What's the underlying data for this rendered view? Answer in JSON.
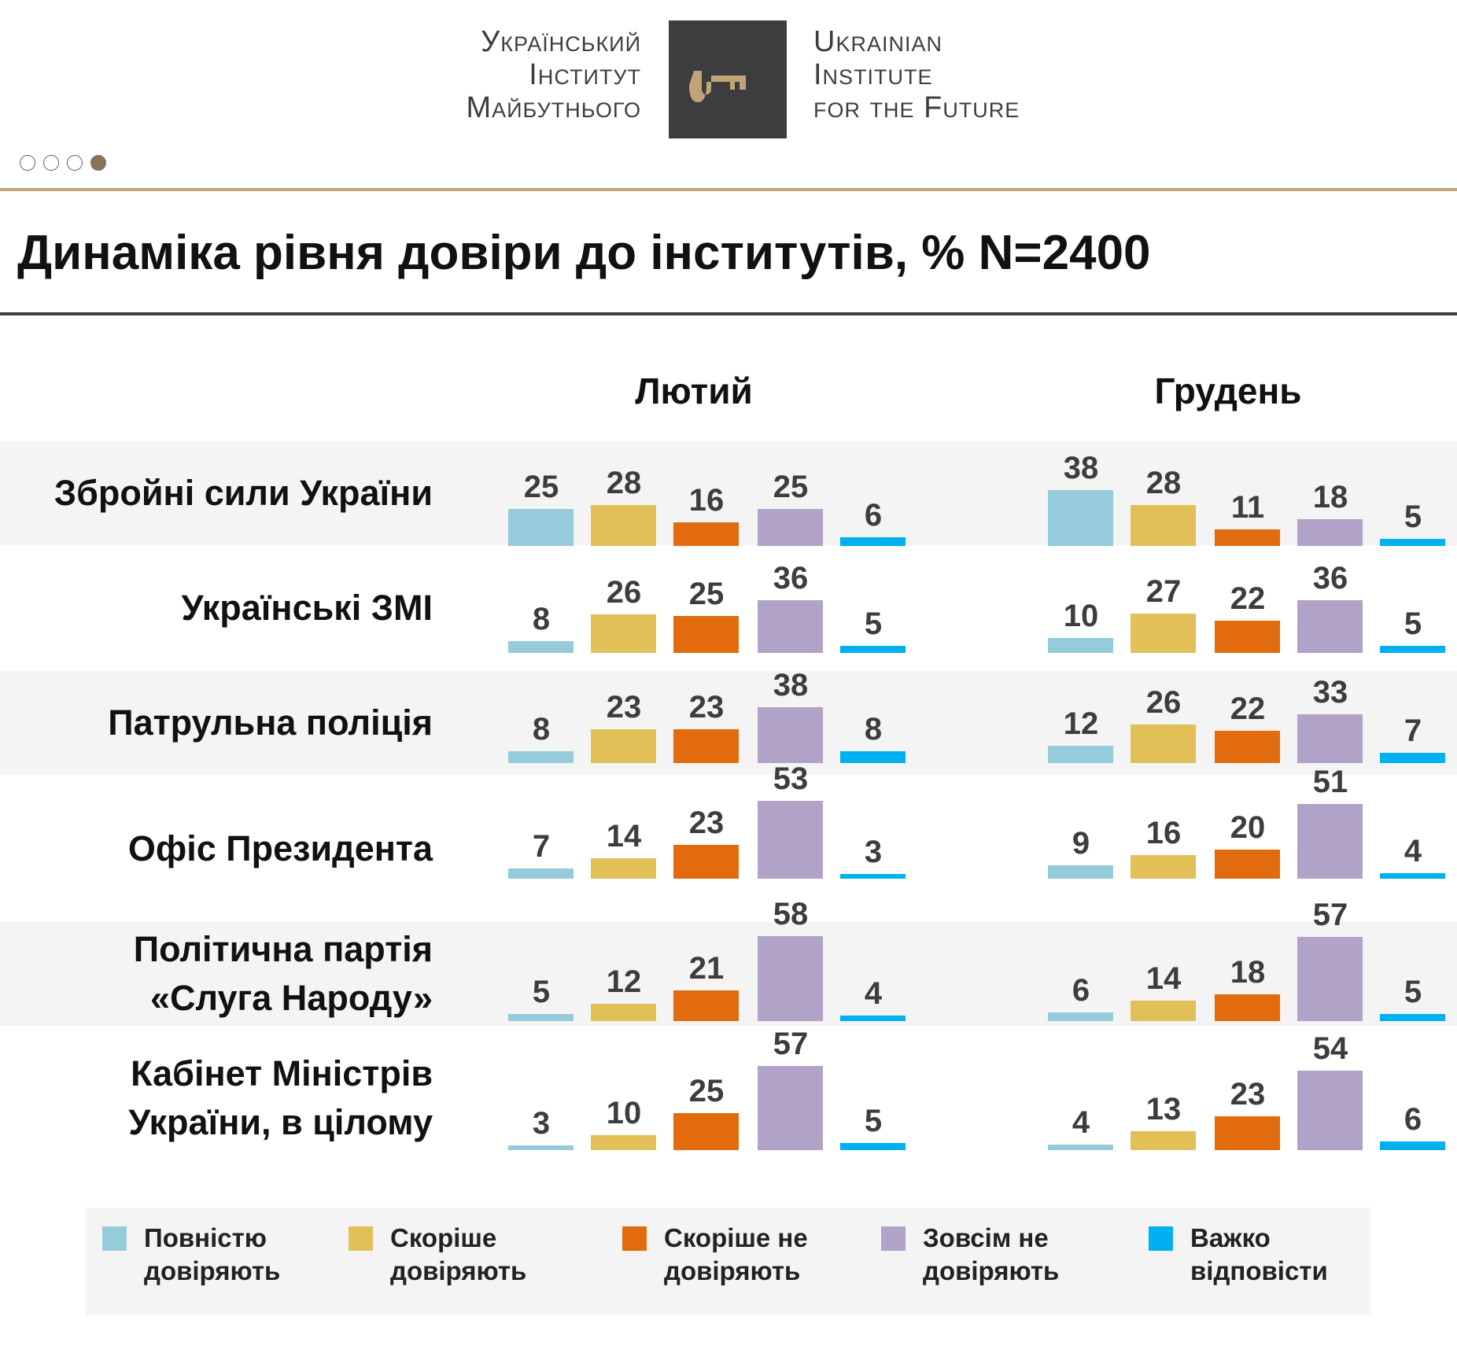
{
  "header": {
    "logo_ua_lines": [
      "Український",
      "Інститут",
      "Майбутнього"
    ],
    "logo_en_lines": [
      "Ukrainian",
      "Institute",
      "for the Future"
    ],
    "pager": {
      "total": 4,
      "active": 4
    }
  },
  "chart_data": {
    "type": "bar",
    "title": "Динаміка рівня довіри до інститутів, % N=2400",
    "periods": [
      "Лютий",
      "Грудень"
    ],
    "categories": [
      [
        "Збройні сили України"
      ],
      [
        "Українські ЗМІ"
      ],
      [
        "Патрульна поліція"
      ],
      [
        "Офіс Президента"
      ],
      [
        "Політична партія",
        "«Слуга Народу»"
      ],
      [
        "Кабінет Міністрів",
        "України, в цілому"
      ]
    ],
    "series": [
      {
        "name": "Повністю довіряють",
        "legend_lines": [
          "Повністю",
          "довіряють"
        ],
        "color": "#96cbdc",
        "feb": [
          25,
          8,
          8,
          7,
          5,
          3
        ],
        "dec": [
          38,
          10,
          12,
          9,
          6,
          4
        ]
      },
      {
        "name": "Скоріше довіряють",
        "legend_lines": [
          "Скоріше",
          "довіряють"
        ],
        "color": "#e3c057",
        "feb": [
          28,
          26,
          23,
          14,
          12,
          10
        ],
        "dec": [
          28,
          27,
          26,
          16,
          14,
          13
        ]
      },
      {
        "name": "Скоріше не довіряють",
        "legend_lines": [
          "Скоріше не",
          "довіряють"
        ],
        "color": "#e26c0d",
        "feb": [
          16,
          25,
          23,
          23,
          21,
          25
        ],
        "dec": [
          11,
          22,
          22,
          20,
          18,
          23
        ]
      },
      {
        "name": "Зовсім не довіряють",
        "legend_lines": [
          "Зовсім не",
          "довіряють"
        ],
        "color": "#b1a3c8",
        "feb": [
          25,
          36,
          38,
          53,
          58,
          57
        ],
        "dec": [
          18,
          36,
          33,
          51,
          57,
          54
        ]
      },
      {
        "name": "Важко відповісти",
        "legend_lines": [
          "Важко",
          "відповісти"
        ],
        "color": "#00b0f0",
        "feb": [
          6,
          5,
          8,
          3,
          4,
          5
        ],
        "dec": [
          5,
          5,
          7,
          4,
          5,
          6
        ]
      }
    ],
    "unit": "%",
    "legend_position": "bottom"
  }
}
